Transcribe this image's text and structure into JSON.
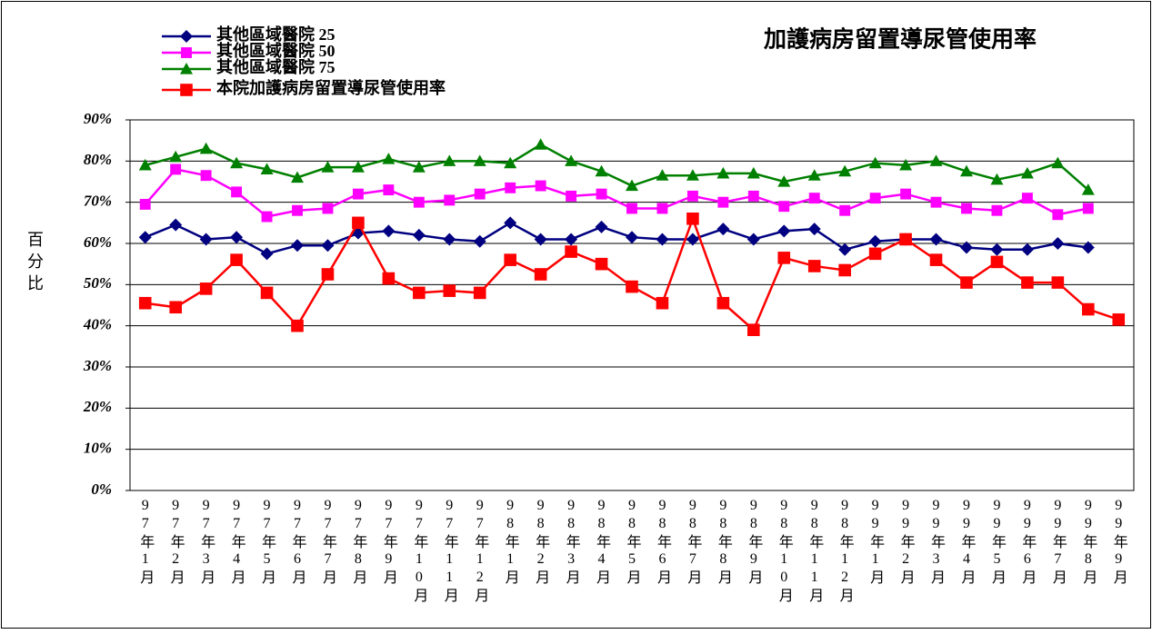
{
  "chart_data": {
    "type": "line",
    "title": "加護病房留置導尿管使用率",
    "y_label": "百分比",
    "categories": [
      "97年1月",
      "97年2月",
      "97年3月",
      "97年4月",
      "97年5月",
      "97年6月",
      "97年7月",
      "97年8月",
      "97年9月",
      "97年10月",
      "97年11月",
      "97年12月",
      "98年1月",
      "98年2月",
      "98年3月",
      "98年4月",
      "98年5月",
      "98年6月",
      "98年7月",
      "98年8月",
      "98年9月",
      "98年10月",
      "98年11月",
      "98年12月",
      "99年1月",
      "99年2月",
      "99年3月",
      "99年4月",
      "99年5月",
      "99年6月",
      "99年7月",
      "99年8月",
      "99年9月"
    ],
    "series": [
      {
        "name": "其他區域醫院 25",
        "color": "#000080",
        "marker": "diamond",
        "values": [
          61.5,
          64.5,
          61,
          61.5,
          57.5,
          59.5,
          59.5,
          62.5,
          63,
          62,
          61,
          60.5,
          65,
          61,
          61,
          64,
          61.5,
          61,
          61,
          63.5,
          61,
          63,
          63.5,
          58.5,
          60.5,
          61,
          61,
          59,
          58.5,
          58.5,
          60,
          59,
          null
        ]
      },
      {
        "name": "其他區域醫院 50",
        "color": "#ff00ff",
        "marker": "square",
        "values": [
          69.5,
          78,
          76.5,
          72.5,
          66.5,
          68,
          68.5,
          72,
          73,
          70,
          70.5,
          72,
          73.5,
          74,
          71.5,
          72,
          68.5,
          68.5,
          71.5,
          70,
          71.5,
          69,
          71,
          68,
          71,
          72,
          70,
          68.5,
          68,
          71,
          67,
          68.5,
          null
        ]
      },
      {
        "name": "其他區域醫院 75",
        "color": "#008000",
        "marker": "triangle",
        "values": [
          79,
          81,
          83,
          79.5,
          78,
          76,
          78.5,
          78.5,
          80.5,
          78.5,
          80,
          80,
          79.5,
          84,
          80,
          77.5,
          74,
          76.5,
          76.5,
          77,
          77,
          75,
          76.5,
          77.5,
          79.5,
          79,
          80,
          77.5,
          75.5,
          77,
          79.5,
          73,
          null
        ]
      },
      {
        "name": "本院加護病房留置導尿管使用率",
        "color": "#ff0000",
        "marker": "square",
        "values": [
          45.5,
          44.5,
          49,
          56,
          48,
          40,
          52.5,
          65,
          51.5,
          48,
          48.5,
          48,
          56,
          52.5,
          58,
          55,
          49.5,
          45.5,
          66,
          45.5,
          39,
          56.5,
          54.5,
          53.5,
          57.5,
          61,
          56,
          50.5,
          55.5,
          50.5,
          50.5,
          44,
          41.5
        ]
      }
    ],
    "ylim": [
      0,
      90
    ],
    "yticks": [
      {
        "value": 0,
        "label": "0%"
      },
      {
        "value": 10,
        "label": "10%"
      },
      {
        "value": 20,
        "label": "20%"
      },
      {
        "value": 30,
        "label": "30%"
      },
      {
        "value": 40,
        "label": "40%"
      },
      {
        "value": 50,
        "label": "50%"
      },
      {
        "value": 60,
        "label": "60%"
      },
      {
        "value": 70,
        "label": "70%"
      },
      {
        "value": 80,
        "label": "80%"
      },
      {
        "value": 90,
        "label": "90%"
      }
    ],
    "grid": true,
    "legend": "top-left"
  }
}
